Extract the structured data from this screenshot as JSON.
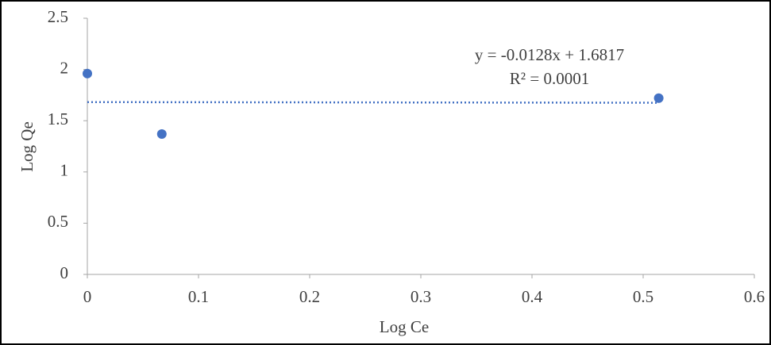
{
  "chart_data": {
    "type": "scatter",
    "x_label": "Log Ce",
    "y_label": "Log Qe",
    "series": [
      {
        "name": "Log Qe",
        "color": "#4472c4",
        "x": [
          0,
          0.067,
          0.514
        ],
        "values": [
          1.96,
          1.37,
          1.72
        ]
      }
    ],
    "trendline": {
      "slope": -0.0128,
      "intercept": 1.6817,
      "color": "#4472c4",
      "equation": "y = -0.0128x + 1.6817",
      "r_squared": "R² = 0.0001"
    },
    "xlim": [
      0,
      0.6
    ],
    "xticks": [
      0,
      0.1,
      0.2,
      0.3,
      0.4,
      0.5,
      0.6
    ],
    "ylim": [
      0,
      2.5
    ],
    "yticks": [
      0,
      0.5,
      1,
      1.5,
      2,
      2.5
    ],
    "grid": false
  }
}
